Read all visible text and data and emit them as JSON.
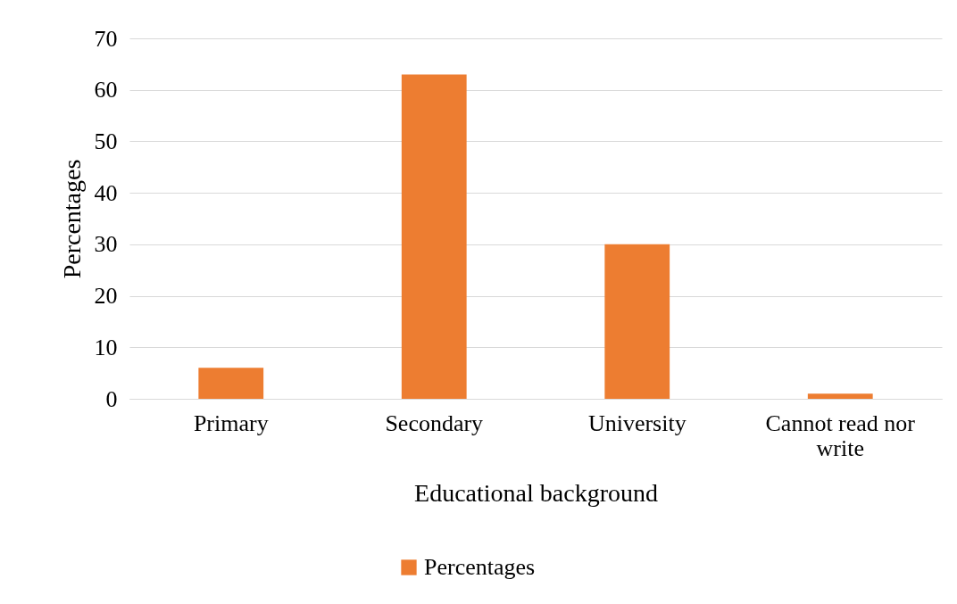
{
  "chart_data": {
    "type": "bar",
    "xlabel": "Educational background",
    "ylabel": "Percentages",
    "categories": [
      "Primary",
      "Secondary",
      "University",
      "Cannot read nor write"
    ],
    "series": [
      {
        "name": "Percentages",
        "color": "#ed7d31",
        "values": [
          6,
          63,
          30,
          1
        ]
      }
    ],
    "ylim": [
      0,
      70
    ],
    "yticks": [
      0,
      10,
      20,
      30,
      40,
      50,
      60,
      70
    ],
    "grid": "y",
    "legend": "bottom"
  }
}
